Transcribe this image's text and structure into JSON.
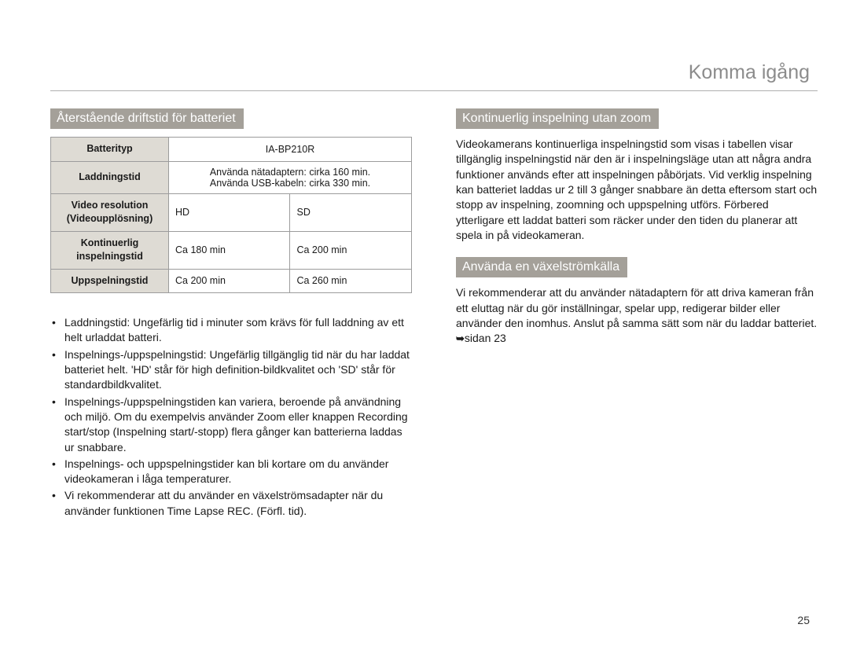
{
  "header": {
    "title": "Komma igång"
  },
  "pageNumber": "25",
  "left": {
    "section1_title": "Återstående driftstid för batteriet",
    "table": {
      "rows": [
        {
          "label": "Batterityp",
          "cells": [
            "IA-BP210R"
          ],
          "colspan": 2
        },
        {
          "label": "Laddningstid",
          "cells": [
            "Använda nätadaptern: cirka 160 min.\nAnvända USB-kabeln: cirka 330 min."
          ],
          "colspan": 2
        },
        {
          "label": "Video resolution\n(Videoupplösning)",
          "cells": [
            "HD",
            "SD"
          ]
        },
        {
          "label": "Kontinuerlig\ninspelningstid",
          "cells": [
            "Ca 180 min",
            "Ca 200 min"
          ]
        },
        {
          "label": "Uppspelningstid",
          "cells": [
            "Ca 200 min",
            "Ca 260 min"
          ]
        }
      ]
    },
    "bullets": [
      "Laddningstid: Ungefärlig tid i minuter som krävs för full laddning av ett helt urladdat batteri.",
      "Inspelnings-/uppspelningstid: Ungefärlig tillgänglig tid när du har laddat batteriet helt. 'HD' står för high definition-bildkvalitet och 'SD' står för standardbildkvalitet.",
      "Inspelnings-/uppspelningstiden kan variera, beroende på användning och miljö. Om du exempelvis använder Zoom eller knappen Recording start/stop (Inspelning start/-stopp) flera gånger kan batterierna laddas ur snabbare.",
      "Inspelnings- och uppspelningstider kan bli kortare om du använder videokameran i låga temperaturer.",
      "Vi rekommenderar att du använder en växelströmsadapter när du använder funktionen Time Lapse REC. (Förfl. tid)."
    ]
  },
  "right": {
    "section1_title": "Kontinuerlig inspelning utan zoom",
    "para1": "Videokamerans kontinuerliga inspelningstid som visas i tabellen visar tillgänglig inspelningstid när den är i inspelningsläge utan att några andra funktioner används efter att inspelningen påbörjats. Vid verklig inspelning kan batteriet laddas ur 2 till 3 gånger snabbare än detta eftersom start och stopp av inspelning, zoomning och uppspelning utförs. Förbered ytterligare ett laddat batteri som räcker under den tiden du planerar att spela in på videokameran.",
    "section2_title": "Använda en växelströmkälla",
    "para2_a": "Vi rekommenderar att du använder nätadaptern för att driva kameran från ett eluttag när du gör inställningar, spelar upp, redigerar bilder eller använder den inomhus. Anslut på samma sätt som när du laddar batteriet. ",
    "para2_ref": "sidan 23"
  }
}
